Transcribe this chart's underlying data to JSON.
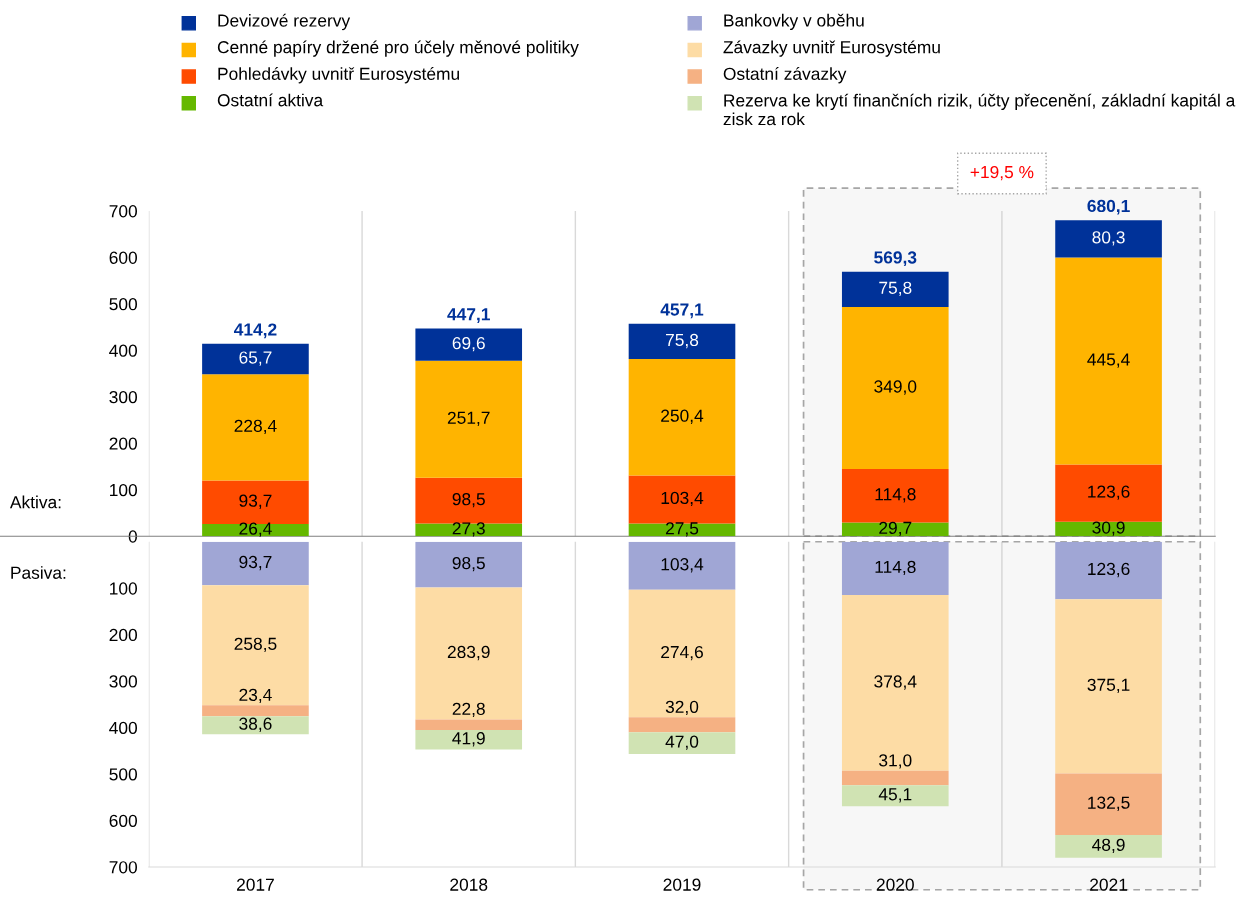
{
  "chart_data": [
    {
      "type": "bar",
      "stacked": true,
      "categories": [
        "2017",
        "2018",
        "2019",
        "2020",
        "2021"
      ],
      "series": [
        {
          "name": "Ostatní aktiva",
          "color": "#65b800",
          "values": [
            26.4,
            27.3,
            27.5,
            29.7,
            30.9
          ],
          "value_labels": [
            "26,4",
            "27,3",
            "27,5",
            "29,7",
            "30,9"
          ]
        },
        {
          "name": "Pohledávky uvnitř Eurosystému",
          "color": "#ff4b00",
          "values": [
            93.7,
            98.5,
            103.4,
            114.8,
            123.6
          ],
          "value_labels": [
            "93,7",
            "98,5",
            "103,4",
            "114,8",
            "123,6"
          ]
        },
        {
          "name": "Cenné papíry držené pro účely měnové politiky",
          "color": "#ffb400",
          "values": [
            228.4,
            251.7,
            250.4,
            349.0,
            445.4
          ],
          "value_labels": [
            "228,4",
            "251,7",
            "250,4",
            "349,0",
            "445,4"
          ]
        },
        {
          "name": "Devizové rezervy",
          "color": "#003299",
          "values": [
            65.7,
            69.6,
            75.8,
            75.8,
            80.3
          ],
          "value_labels": [
            "65,7",
            "69,6",
            "75,8",
            "75,8",
            "80,3"
          ]
        }
      ],
      "totals": [
        "414,2",
        "447,1",
        "457,1",
        "569,3",
        "680,1"
      ],
      "ylim": [
        0,
        700
      ],
      "yticks": [
        0,
        100,
        200,
        300,
        400,
        500,
        600,
        700
      ],
      "tick_labels": "y",
      "bands": [
        {
          "axis": "x",
          "from": "2020",
          "to": "2021",
          "label": "+19,5 %",
          "color": "#a6a6a6"
        }
      ],
      "annotations": [
        "Aktiva:"
      ],
      "grid": "x",
      "legend": "top"
    },
    {
      "type": "bar",
      "stacked": true,
      "categories": [
        "2017",
        "2018",
        "2019",
        "2020",
        "2021"
      ],
      "series": [
        {
          "name": "Bankovky v oběhu",
          "color": "#a0a6d5",
          "values": [
            93.7,
            98.5,
            103.4,
            114.8,
            123.6
          ],
          "value_labels": [
            "93,7",
            "98,5",
            "103,4",
            "114,8",
            "123,6"
          ]
        },
        {
          "name": "Závazky uvnitř Eurosystému",
          "color": "#fddca5",
          "values": [
            258.5,
            283.9,
            274.6,
            378.4,
            375.1
          ],
          "value_labels": [
            "258,5",
            "283,9",
            "274,6",
            "378,4",
            "375,1"
          ]
        },
        {
          "name": "Ostatní závazky",
          "color": "#f5b183",
          "values": [
            23.4,
            22.8,
            32.0,
            31.0,
            132.5
          ],
          "value_labels": [
            "23,4",
            "22,8",
            "32,0",
            "31,0",
            "132,5"
          ]
        },
        {
          "name": "Rezerva ke krytí finančních rizik, účty přecenění, základní kapitál a zisk za rok",
          "color": "#d0e3b3",
          "values": [
            38.6,
            41.9,
            47.0,
            45.1,
            48.9
          ],
          "value_labels": [
            "38,6",
            "41,9",
            "47,0",
            "45,1",
            "48,9"
          ]
        }
      ],
      "ylim": [
        700,
        0
      ],
      "yticks": [
        100,
        200,
        300,
        400,
        500,
        600,
        700
      ],
      "bands": [
        {
          "axis": "x",
          "from": "2020",
          "to": "2021"
        }
      ],
      "annotations": [
        "Pasiva:"
      ],
      "grid": "x",
      "legend": "top"
    }
  ]
}
